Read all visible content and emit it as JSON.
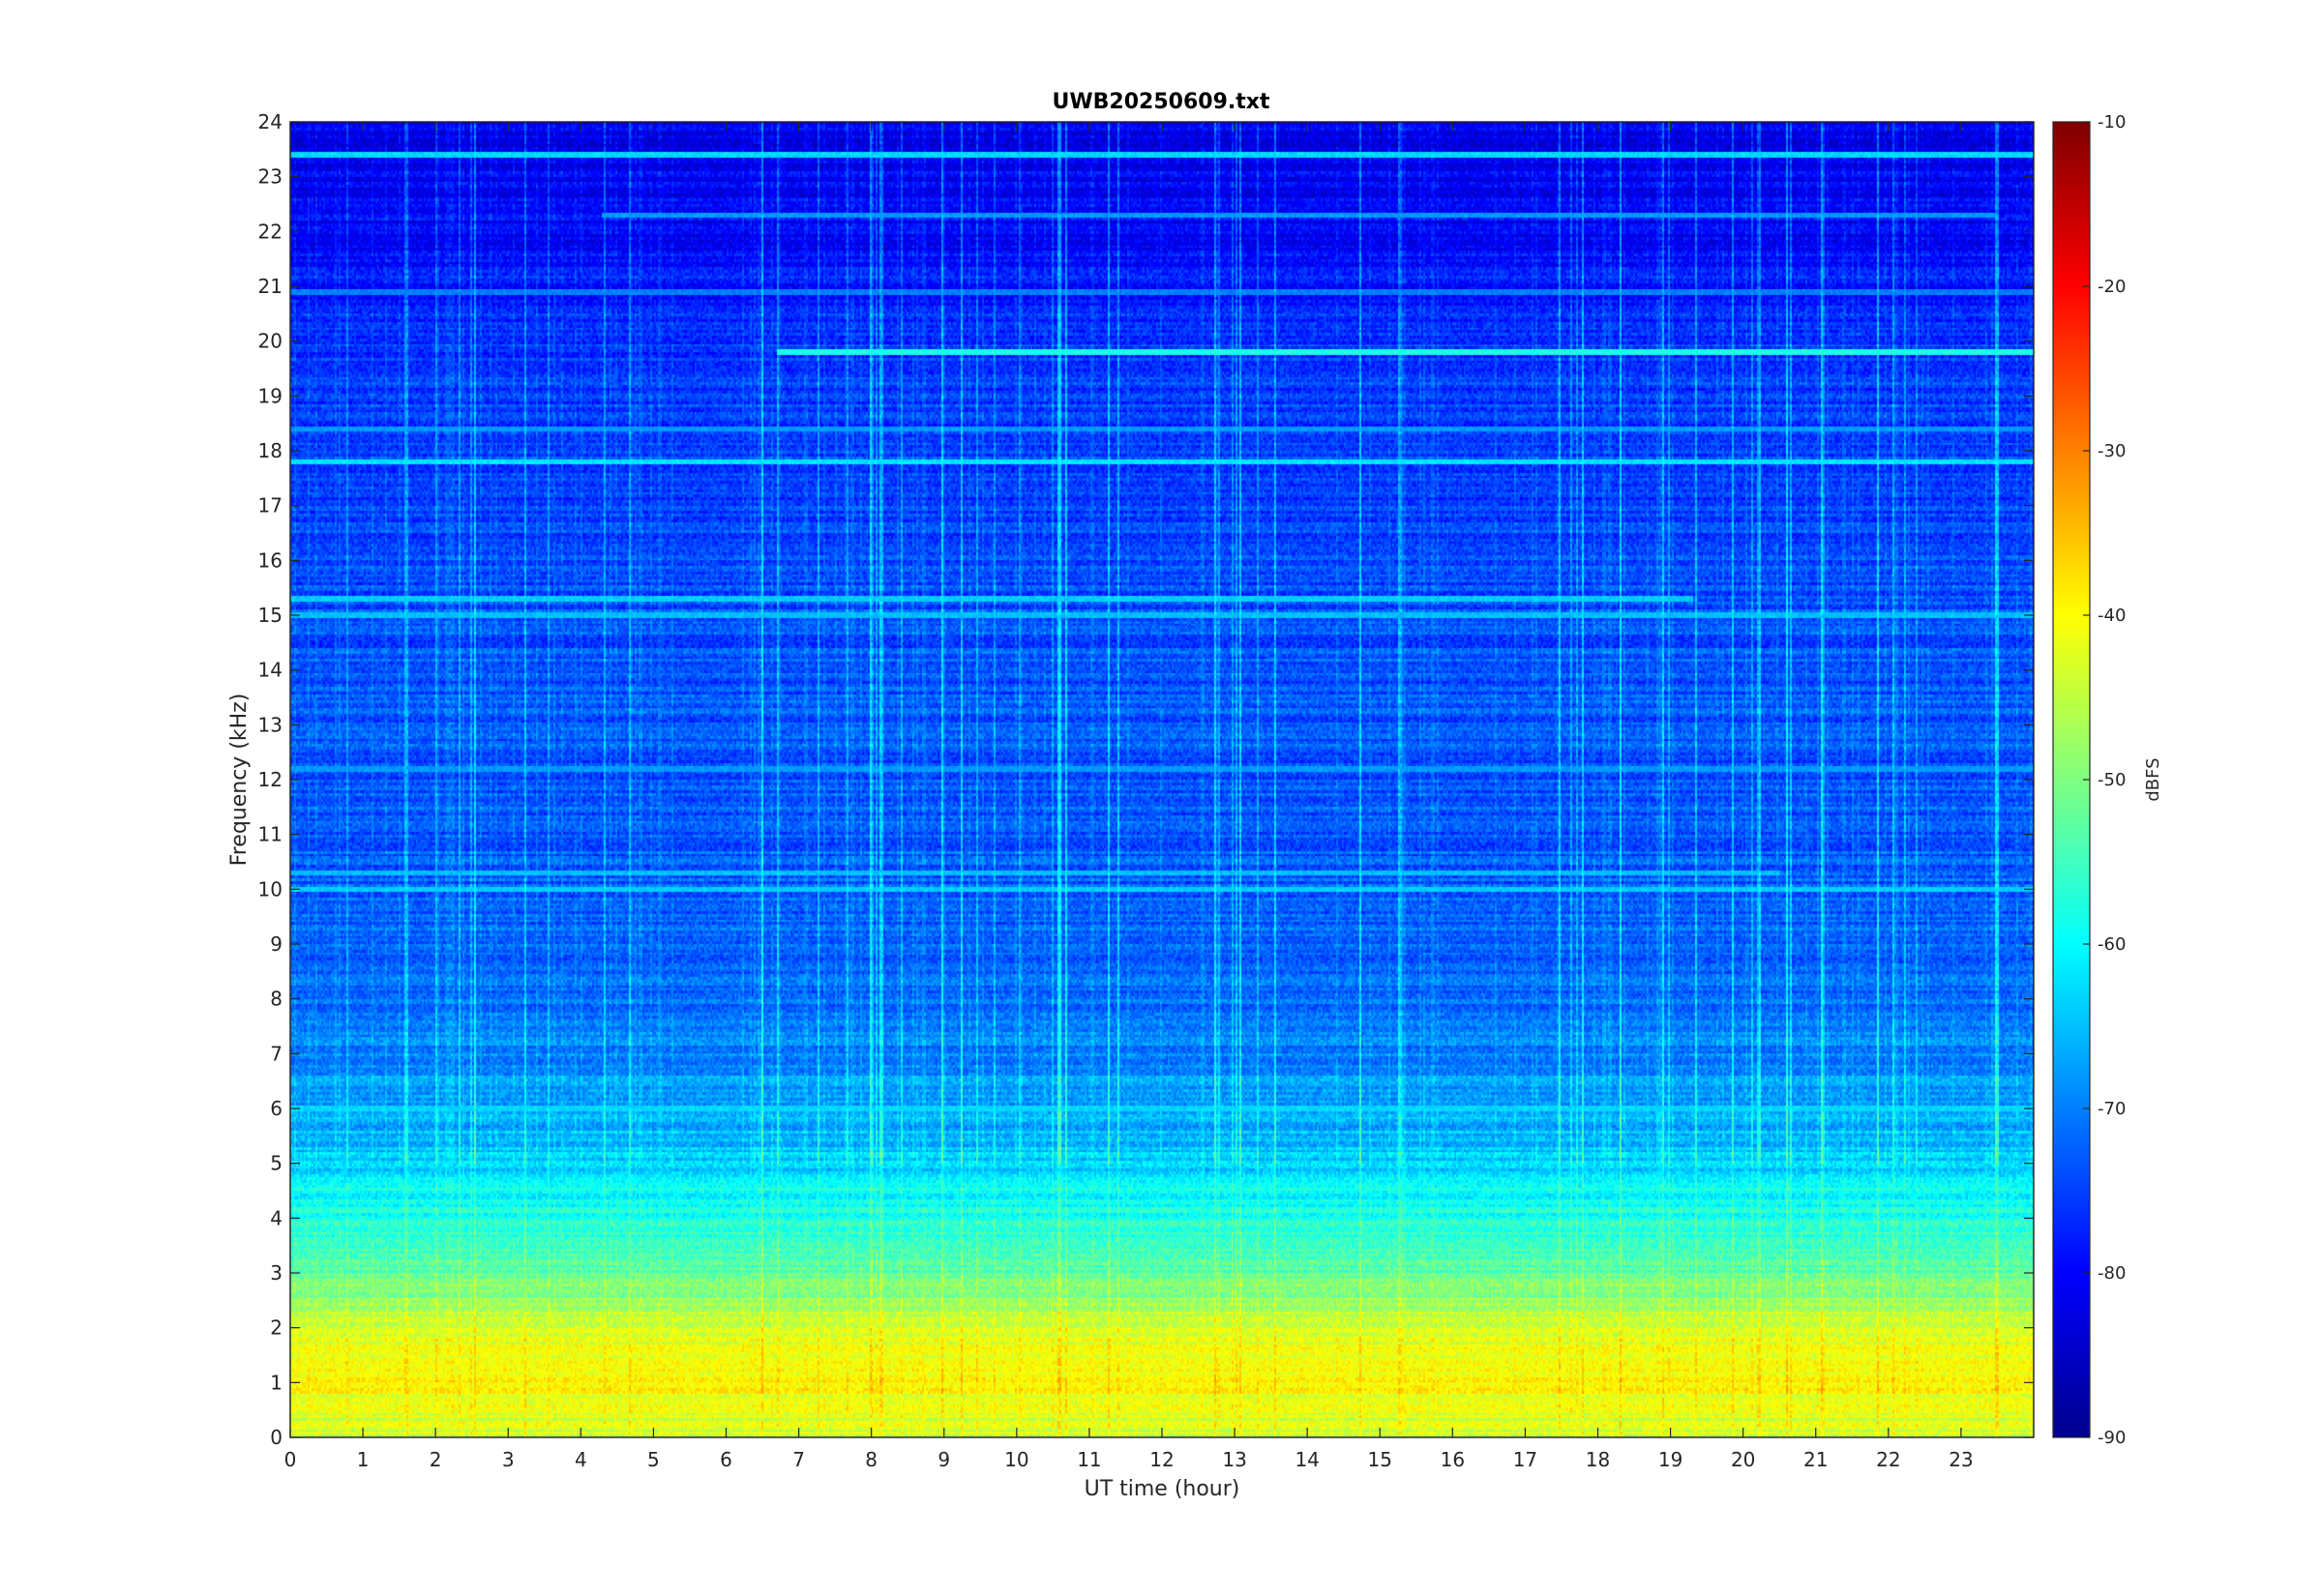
{
  "chart_data": {
    "type": "heatmap",
    "title": "UWB20250609.txt",
    "xlabel": "UT time (hour)",
    "ylabel": "Frequency (kHz)",
    "xlim": [
      0,
      24
    ],
    "ylim": [
      0,
      24
    ],
    "x_ticks": [
      "0",
      "1",
      "2",
      "3",
      "4",
      "5",
      "6",
      "7",
      "8",
      "9",
      "10",
      "11",
      "12",
      "13",
      "14",
      "15",
      "16",
      "17",
      "18",
      "19",
      "20",
      "21",
      "22",
      "23"
    ],
    "y_ticks": [
      "0",
      "1",
      "2",
      "3",
      "4",
      "5",
      "6",
      "7",
      "8",
      "9",
      "10",
      "11",
      "12",
      "13",
      "14",
      "15",
      "16",
      "17",
      "18",
      "19",
      "20",
      "21",
      "22",
      "23",
      "24"
    ],
    "colorbar": {
      "label": "dBFS",
      "colormap": "jet",
      "range": [
        -90,
        -10
      ],
      "ticks": [
        "-10",
        "-20",
        "-30",
        "-40",
        "-50",
        "-60",
        "-70",
        "-80",
        "-90"
      ]
    },
    "level_profile_by_frequency": [
      {
        "freq_khz": 0.0,
        "dbfs": -45
      },
      {
        "freq_khz": 0.5,
        "dbfs": -42
      },
      {
        "freq_khz": 1.0,
        "dbfs": -40
      },
      {
        "freq_khz": 1.5,
        "dbfs": -41
      },
      {
        "freq_khz": 2.0,
        "dbfs": -43
      },
      {
        "freq_khz": 2.5,
        "dbfs": -48
      },
      {
        "freq_khz": 3.0,
        "dbfs": -53
      },
      {
        "freq_khz": 3.5,
        "dbfs": -56
      },
      {
        "freq_khz": 4.0,
        "dbfs": -58
      },
      {
        "freq_khz": 4.5,
        "dbfs": -60
      },
      {
        "freq_khz": 5.0,
        "dbfs": -64
      },
      {
        "freq_khz": 6.0,
        "dbfs": -67
      },
      {
        "freq_khz": 7.0,
        "dbfs": -70
      },
      {
        "freq_khz": 8.0,
        "dbfs": -72
      },
      {
        "freq_khz": 10.0,
        "dbfs": -73
      },
      {
        "freq_khz": 15.0,
        "dbfs": -74
      },
      {
        "freq_khz": 20.0,
        "dbfs": -76
      },
      {
        "freq_khz": 22.0,
        "dbfs": -80
      },
      {
        "freq_khz": 24.0,
        "dbfs": -82
      }
    ],
    "persistent_lines": [
      {
        "freq_khz": 17.8,
        "dbfs": -62,
        "start_hour": 0,
        "end_hour": 24
      },
      {
        "freq_khz": 19.8,
        "dbfs": -58,
        "start_hour": 6.7,
        "end_hour": 24
      },
      {
        "freq_khz": 23.4,
        "dbfs": -63,
        "start_hour": 0,
        "end_hour": 24
      },
      {
        "freq_khz": 15.3,
        "dbfs": -64,
        "start_hour": 0,
        "end_hour": 19.3
      },
      {
        "freq_khz": 15.0,
        "dbfs": -65,
        "start_hour": 0,
        "end_hour": 24
      },
      {
        "freq_khz": 10.3,
        "dbfs": -65,
        "start_hour": 0,
        "end_hour": 20.5
      },
      {
        "freq_khz": 10.0,
        "dbfs": -64,
        "start_hour": 0,
        "end_hour": 24
      },
      {
        "freq_khz": 6.0,
        "dbfs": -63,
        "start_hour": 0,
        "end_hour": 24
      },
      {
        "freq_khz": 12.2,
        "dbfs": -68,
        "start_hour": 0,
        "end_hour": 24
      },
      {
        "freq_khz": 22.3,
        "dbfs": -68,
        "start_hour": 4.3,
        "end_hour": 23.5
      },
      {
        "freq_khz": 18.4,
        "dbfs": -68,
        "start_hour": 0,
        "end_hour": 24
      },
      {
        "freq_khz": 20.9,
        "dbfs": -70,
        "start_hour": 0,
        "end_hour": 24
      }
    ]
  }
}
